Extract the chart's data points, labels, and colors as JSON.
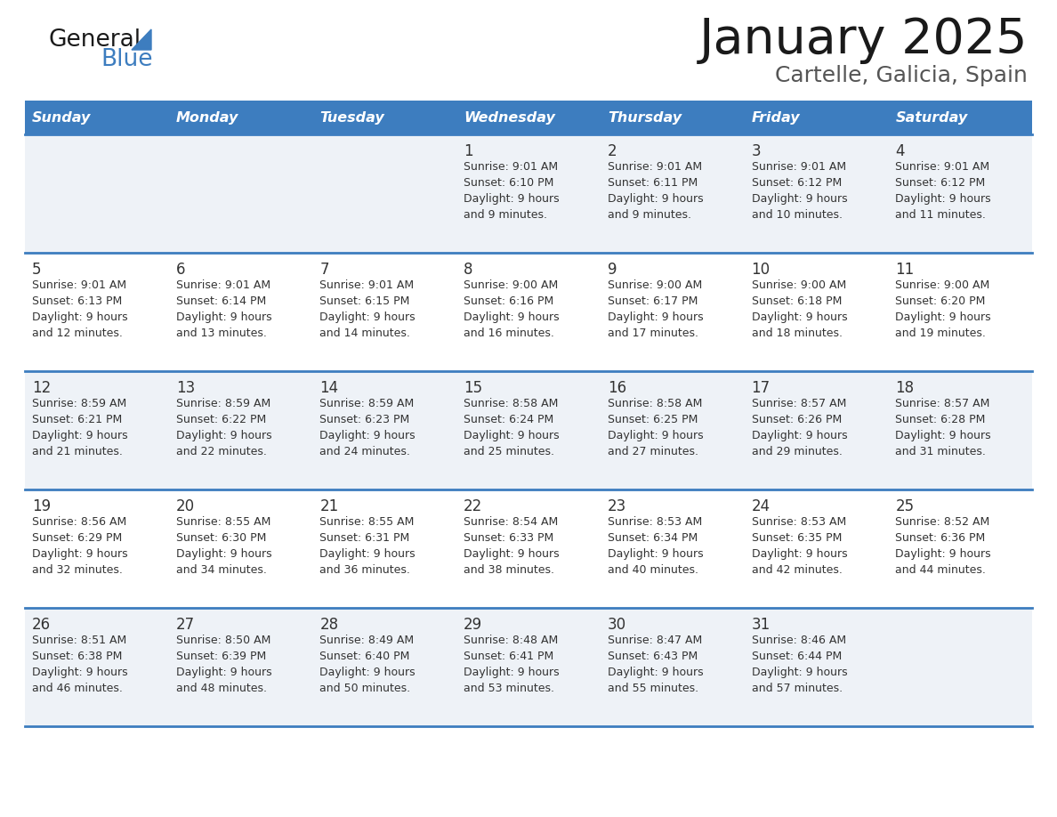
{
  "title": "January 2025",
  "subtitle": "Cartelle, Galicia, Spain",
  "header_bg_color": "#3d7dbf",
  "header_text_color": "#ffffff",
  "row_bg_colors": [
    "#eef2f7",
    "#ffffff",
    "#eef2f7",
    "#ffffff",
    "#eef2f7"
  ],
  "separator_color": "#3d7dbf",
  "text_color": "#333333",
  "day_number_color": "#333333",
  "title_color": "#222222",
  "subtitle_color": "#555555",
  "day_names": [
    "Sunday",
    "Monday",
    "Tuesday",
    "Wednesday",
    "Thursday",
    "Friday",
    "Saturday"
  ],
  "weeks": [
    [
      {
        "day": "",
        "info": ""
      },
      {
        "day": "",
        "info": ""
      },
      {
        "day": "",
        "info": ""
      },
      {
        "day": "1",
        "info": "Sunrise: 9:01 AM\nSunset: 6:10 PM\nDaylight: 9 hours\nand 9 minutes."
      },
      {
        "day": "2",
        "info": "Sunrise: 9:01 AM\nSunset: 6:11 PM\nDaylight: 9 hours\nand 9 minutes."
      },
      {
        "day": "3",
        "info": "Sunrise: 9:01 AM\nSunset: 6:12 PM\nDaylight: 9 hours\nand 10 minutes."
      },
      {
        "day": "4",
        "info": "Sunrise: 9:01 AM\nSunset: 6:12 PM\nDaylight: 9 hours\nand 11 minutes."
      }
    ],
    [
      {
        "day": "5",
        "info": "Sunrise: 9:01 AM\nSunset: 6:13 PM\nDaylight: 9 hours\nand 12 minutes."
      },
      {
        "day": "6",
        "info": "Sunrise: 9:01 AM\nSunset: 6:14 PM\nDaylight: 9 hours\nand 13 minutes."
      },
      {
        "day": "7",
        "info": "Sunrise: 9:01 AM\nSunset: 6:15 PM\nDaylight: 9 hours\nand 14 minutes."
      },
      {
        "day": "8",
        "info": "Sunrise: 9:00 AM\nSunset: 6:16 PM\nDaylight: 9 hours\nand 16 minutes."
      },
      {
        "day": "9",
        "info": "Sunrise: 9:00 AM\nSunset: 6:17 PM\nDaylight: 9 hours\nand 17 minutes."
      },
      {
        "day": "10",
        "info": "Sunrise: 9:00 AM\nSunset: 6:18 PM\nDaylight: 9 hours\nand 18 minutes."
      },
      {
        "day": "11",
        "info": "Sunrise: 9:00 AM\nSunset: 6:20 PM\nDaylight: 9 hours\nand 19 minutes."
      }
    ],
    [
      {
        "day": "12",
        "info": "Sunrise: 8:59 AM\nSunset: 6:21 PM\nDaylight: 9 hours\nand 21 minutes."
      },
      {
        "day": "13",
        "info": "Sunrise: 8:59 AM\nSunset: 6:22 PM\nDaylight: 9 hours\nand 22 minutes."
      },
      {
        "day": "14",
        "info": "Sunrise: 8:59 AM\nSunset: 6:23 PM\nDaylight: 9 hours\nand 24 minutes."
      },
      {
        "day": "15",
        "info": "Sunrise: 8:58 AM\nSunset: 6:24 PM\nDaylight: 9 hours\nand 25 minutes."
      },
      {
        "day": "16",
        "info": "Sunrise: 8:58 AM\nSunset: 6:25 PM\nDaylight: 9 hours\nand 27 minutes."
      },
      {
        "day": "17",
        "info": "Sunrise: 8:57 AM\nSunset: 6:26 PM\nDaylight: 9 hours\nand 29 minutes."
      },
      {
        "day": "18",
        "info": "Sunrise: 8:57 AM\nSunset: 6:28 PM\nDaylight: 9 hours\nand 31 minutes."
      }
    ],
    [
      {
        "day": "19",
        "info": "Sunrise: 8:56 AM\nSunset: 6:29 PM\nDaylight: 9 hours\nand 32 minutes."
      },
      {
        "day": "20",
        "info": "Sunrise: 8:55 AM\nSunset: 6:30 PM\nDaylight: 9 hours\nand 34 minutes."
      },
      {
        "day": "21",
        "info": "Sunrise: 8:55 AM\nSunset: 6:31 PM\nDaylight: 9 hours\nand 36 minutes."
      },
      {
        "day": "22",
        "info": "Sunrise: 8:54 AM\nSunset: 6:33 PM\nDaylight: 9 hours\nand 38 minutes."
      },
      {
        "day": "23",
        "info": "Sunrise: 8:53 AM\nSunset: 6:34 PM\nDaylight: 9 hours\nand 40 minutes."
      },
      {
        "day": "24",
        "info": "Sunrise: 8:53 AM\nSunset: 6:35 PM\nDaylight: 9 hours\nand 42 minutes."
      },
      {
        "day": "25",
        "info": "Sunrise: 8:52 AM\nSunset: 6:36 PM\nDaylight: 9 hours\nand 44 minutes."
      }
    ],
    [
      {
        "day": "26",
        "info": "Sunrise: 8:51 AM\nSunset: 6:38 PM\nDaylight: 9 hours\nand 46 minutes."
      },
      {
        "day": "27",
        "info": "Sunrise: 8:50 AM\nSunset: 6:39 PM\nDaylight: 9 hours\nand 48 minutes."
      },
      {
        "day": "28",
        "info": "Sunrise: 8:49 AM\nSunset: 6:40 PM\nDaylight: 9 hours\nand 50 minutes."
      },
      {
        "day": "29",
        "info": "Sunrise: 8:48 AM\nSunset: 6:41 PM\nDaylight: 9 hours\nand 53 minutes."
      },
      {
        "day": "30",
        "info": "Sunrise: 8:47 AM\nSunset: 6:43 PM\nDaylight: 9 hours\nand 55 minutes."
      },
      {
        "day": "31",
        "info": "Sunrise: 8:46 AM\nSunset: 6:44 PM\nDaylight: 9 hours\nand 57 minutes."
      },
      {
        "day": "",
        "info": ""
      }
    ]
  ]
}
